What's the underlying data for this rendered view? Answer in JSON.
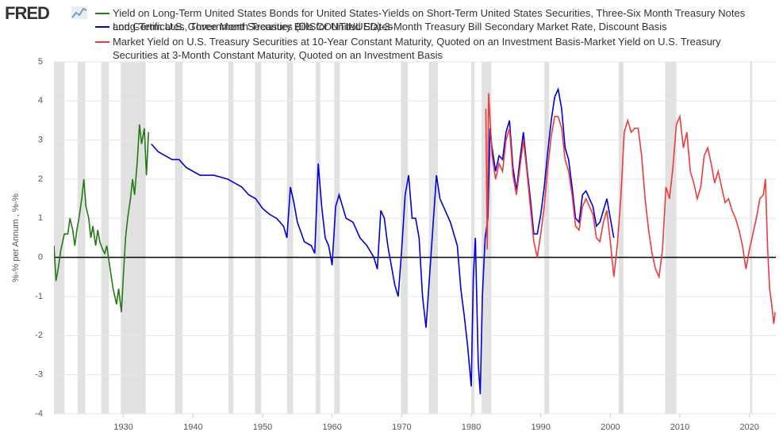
{
  "chart_data": {
    "type": "line",
    "logo": "FRED",
    "y_label": "%-% per Annum , %-%",
    "xlim": [
      1920,
      2023.8
    ],
    "ylim": [
      -4,
      5
    ],
    "xticks": [
      1930,
      1940,
      1950,
      1960,
      1970,
      1980,
      1990,
      2000,
      2010,
      2020
    ],
    "yticks": [
      -4,
      -3,
      -2,
      -1,
      0,
      1,
      2,
      3,
      4,
      5
    ],
    "grid": true,
    "zero_line": 0,
    "recession_color": "#e1e1e1",
    "recessions": [
      [
        1920.0,
        1921.5
      ],
      [
        1923.4,
        1924.5
      ],
      [
        1926.8,
        1927.9
      ],
      [
        1929.6,
        1933.2
      ],
      [
        1937.4,
        1938.5
      ],
      [
        1945.1,
        1945.8
      ],
      [
        1948.9,
        1949.8
      ],
      [
        1953.5,
        1954.4
      ],
      [
        1957.6,
        1958.3
      ],
      [
        1960.3,
        1961.1
      ],
      [
        1969.9,
        1970.9
      ],
      [
        1973.9,
        1975.2
      ],
      [
        1980.0,
        1980.5
      ],
      [
        1981.5,
        1982.9
      ],
      [
        1990.5,
        1991.2
      ],
      [
        2001.2,
        2001.9
      ],
      [
        2007.9,
        2009.5
      ],
      [
        2020.1,
        2020.4
      ]
    ],
    "series": [
      {
        "name": "Yield on Long-Term United States Bonds for United States-Yields on Short-Term United States Securities, Three-Six Month Treasury Notes and Certificates, Three Month Treasury Bills for United States",
        "color": "#237a15",
        "x": [
          1920.0,
          1920.3,
          1920.6,
          1921,
          1921.5,
          1922,
          1922.3,
          1922.7,
          1923,
          1923.3,
          1923.6,
          1924,
          1924.3,
          1924.6,
          1925,
          1925.3,
          1925.6,
          1926,
          1926.3,
          1926.6,
          1927,
          1927.3,
          1927.6,
          1928,
          1928.5,
          1929,
          1929.3,
          1929.7,
          1930,
          1930.3,
          1930.6,
          1931,
          1931.3,
          1931.6,
          1932,
          1932.3,
          1932.6,
          1933,
          1933.3,
          1933.6
        ],
        "values": [
          0.3,
          -0.6,
          -0.3,
          0.2,
          0.6,
          0.6,
          1.0,
          0.7,
          0.3,
          0.7,
          1.0,
          1.5,
          2.0,
          1.3,
          1.0,
          0.5,
          0.8,
          0.3,
          0.7,
          0.4,
          0.2,
          0.1,
          0.3,
          -0.2,
          -0.8,
          -1.2,
          -0.8,
          -1.4,
          -0.4,
          0.5,
          1.0,
          1.5,
          2.0,
          1.6,
          2.5,
          3.4,
          2.9,
          3.3,
          2.1,
          3.2
        ]
      },
      {
        "name": "Long-Term U.S. Government Securities (DISCONTINUED)-3-Month Treasury Bill Secondary Market Rate, Discount Basis",
        "color": "#0000e0",
        "x": [
          1934,
          1935,
          1936,
          1937,
          1938,
          1939,
          1940,
          1941,
          1942,
          1943,
          1944,
          1945,
          1946,
          1947,
          1948,
          1949,
          1950,
          1951,
          1952,
          1953,
          1953.5,
          1954,
          1954.5,
          1955,
          1956,
          1957,
          1957.5,
          1958,
          1958.5,
          1959,
          1959.5,
          1960,
          1960.5,
          1961,
          1962,
          1963,
          1964,
          1965,
          1966,
          1966.5,
          1967,
          1967.5,
          1968,
          1969,
          1969.5,
          1970,
          1970.5,
          1971,
          1971.5,
          1972,
          1972.5,
          1973,
          1973.5,
          1974,
          1974.5,
          1975,
          1975.5,
          1976,
          1977,
          1978,
          1978.5,
          1979,
          1979.5,
          1980,
          1980.3,
          1980.6,
          1981,
          1981.3,
          1981.6,
          1982,
          1982.4,
          1982.7,
          1983,
          1983.5,
          1984,
          1984.5,
          1985,
          1985.5,
          1986,
          1986.5,
          1987,
          1987.5,
          1988,
          1988.5,
          1989,
          1989.5,
          1990,
          1990.5,
          1991,
          1991.5,
          1992,
          1992.5,
          1993,
          1993.5,
          1994,
          1994.5,
          1995,
          1995.5,
          1996,
          1996.5,
          1997,
          1997.5,
          1998,
          1998.5,
          1999,
          1999.5,
          2000,
          2000.5
        ],
        "values": [
          2.9,
          2.7,
          2.6,
          2.5,
          2.5,
          2.3,
          2.2,
          2.1,
          2.1,
          2.1,
          2.05,
          2.0,
          1.9,
          1.8,
          1.6,
          1.5,
          1.25,
          1.1,
          1.0,
          0.8,
          0.5,
          1.8,
          1.4,
          0.9,
          0.4,
          0.3,
          0.1,
          2.4,
          1.3,
          0.5,
          0.3,
          -0.2,
          1.3,
          1.6,
          1.0,
          0.9,
          0.5,
          0.3,
          0.0,
          -0.3,
          1.2,
          1.0,
          0.3,
          -0.7,
          -1.0,
          0.2,
          1.6,
          2.1,
          1.0,
          1.0,
          0.5,
          -1.0,
          -1.8,
          -0.5,
          0.8,
          2.1,
          1.5,
          1.3,
          0.9,
          0.3,
          -0.8,
          -1.5,
          -2.3,
          -3.3,
          -0.5,
          0.5,
          -2.7,
          -3.5,
          -1.0,
          0.5,
          1.0,
          3.3,
          2.8,
          2.2,
          2.6,
          2.5,
          3.2,
          3.5,
          2.3,
          1.7,
          2.5,
          3.2,
          2.3,
          1.5,
          0.6,
          0.6,
          1.1,
          1.8,
          2.7,
          3.5,
          4.1,
          4.3,
          3.8,
          2.8,
          2.5,
          1.8,
          1.0,
          0.9,
          1.6,
          1.7,
          1.5,
          1.3,
          0.8,
          0.9,
          1.2,
          1.5,
          1.0,
          0.5
        ]
      },
      {
        "name": "Market Yield on U.S. Treasury Securities at 10-Year Constant Maturity, Quoted on an Investment Basis-Market Yield on U.S. Treasury Securities at 3-Month Constant Maturity, Quoted on an Investment Basis",
        "color": "#ee3b3b",
        "x": [
          1982.1,
          1982.3,
          1982.5,
          1983,
          1983.5,
          1984,
          1984.5,
          1985,
          1985.5,
          1986,
          1986.5,
          1987,
          1987.5,
          1988,
          1988.5,
          1989,
          1989.5,
          1990,
          1990.5,
          1991,
          1991.5,
          1992,
          1992.5,
          1993,
          1993.5,
          1994,
          1994.5,
          1995,
          1995.5,
          1996,
          1996.5,
          1997,
          1997.5,
          1998,
          1998.5,
          1999,
          1999.5,
          2000,
          2000.5,
          2001,
          2001.5,
          2002,
          2002.5,
          2003,
          2003.5,
          2004,
          2004.5,
          2005,
          2005.5,
          2006,
          2006.5,
          2007,
          2007.5,
          2008,
          2008.5,
          2009,
          2009.5,
          2010,
          2010.5,
          2011,
          2011.5,
          2012,
          2012.5,
          2013,
          2013.5,
          2014,
          2014.5,
          2015,
          2015.5,
          2016,
          2016.5,
          2017,
          2017.5,
          2018,
          2018.5,
          2019,
          2019.5,
          2020,
          2020.5,
          2021,
          2021.5,
          2022,
          2022.3,
          2022.6,
          2022.9,
          2023.2,
          2023.5,
          2023.7
        ],
        "values": [
          3.8,
          0.2,
          4.2,
          2.6,
          2.0,
          2.4,
          2.2,
          3.0,
          3.3,
          2.1,
          1.6,
          2.3,
          3.0,
          2.2,
          1.3,
          0.4,
          0.0,
          0.6,
          1.3,
          2.3,
          3.1,
          3.6,
          3.6,
          3.3,
          2.5,
          2.2,
          1.6,
          0.8,
          0.7,
          1.3,
          1.5,
          1.3,
          1.1,
          0.5,
          0.4,
          0.9,
          1.2,
          0.4,
          -0.5,
          0.3,
          1.5,
          3.2,
          3.5,
          3.2,
          3.3,
          3.3,
          2.6,
          1.5,
          0.7,
          0.1,
          -0.3,
          -0.5,
          0.2,
          1.8,
          1.5,
          2.3,
          3.4,
          3.6,
          2.8,
          3.2,
          2.2,
          1.9,
          1.5,
          1.8,
          2.6,
          2.8,
          2.4,
          1.9,
          2.2,
          1.8,
          1.4,
          1.5,
          1.2,
          1.0,
          0.7,
          0.3,
          -0.3,
          0.2,
          0.6,
          1.0,
          1.5,
          1.6,
          2.0,
          0.3,
          -0.8,
          -1.2,
          -1.7,
          -1.4
        ]
      }
    ]
  }
}
